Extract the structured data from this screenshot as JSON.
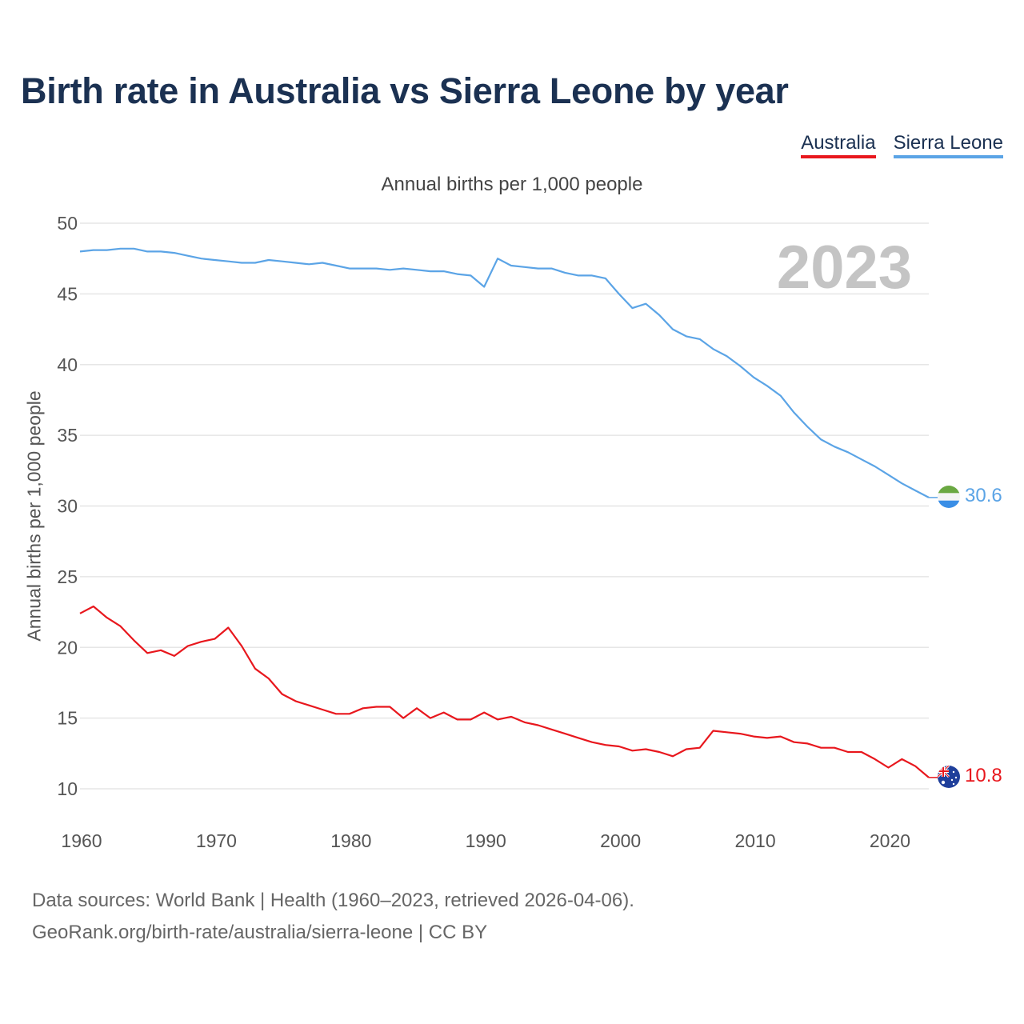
{
  "title": "Birth rate in Australia vs Sierra Leone by year",
  "subtitle": "Annual births per 1,000 people",
  "footer": {
    "line1": "Data sources: World Bank | Health (1960–2023, retrieved 2026-04-06).",
    "line2": "GeoRank.org/birth-rate/australia/sierra-leone | CC BY"
  },
  "colors": {
    "australia": "#e8171d",
    "sierra_leone": "#5ba4e6",
    "grid": "#e6e6e6",
    "tick": "#555555",
    "year_watermark": "#c4c4c4"
  },
  "chart_data": {
    "type": "line",
    "title": "Birth rate in Australia vs Sierra Leone by year",
    "subtitle": "Annual births per 1,000 people",
    "xlabel": "",
    "ylabel": "Annual births per 1,000 people",
    "xlim": [
      1960,
      2023
    ],
    "ylim": [
      10,
      50
    ],
    "yticks": [
      10,
      15,
      20,
      25,
      30,
      35,
      40,
      45,
      50
    ],
    "xticks": [
      1960,
      1970,
      1980,
      1990,
      2000,
      2010,
      2020
    ],
    "grid": true,
    "legend_position": "top-right",
    "year_label": "2023",
    "x": [
      1960,
      1961,
      1962,
      1963,
      1964,
      1965,
      1966,
      1967,
      1968,
      1969,
      1970,
      1971,
      1972,
      1973,
      1974,
      1975,
      1976,
      1977,
      1978,
      1979,
      1980,
      1981,
      1982,
      1983,
      1984,
      1985,
      1986,
      1987,
      1988,
      1989,
      1990,
      1991,
      1992,
      1993,
      1994,
      1995,
      1996,
      1997,
      1998,
      1999,
      2000,
      2001,
      2002,
      2003,
      2004,
      2005,
      2006,
      2007,
      2008,
      2009,
      2010,
      2011,
      2012,
      2013,
      2014,
      2015,
      2016,
      2017,
      2018,
      2019,
      2020,
      2021,
      2022,
      2023
    ],
    "series": [
      {
        "name": "Australia",
        "end_label": "10.8",
        "values": [
          22.4,
          22.9,
          22.1,
          21.5,
          20.5,
          19.6,
          19.8,
          19.4,
          20.1,
          20.4,
          20.6,
          21.4,
          20.1,
          18.5,
          17.8,
          16.7,
          16.2,
          15.9,
          15.6,
          15.3,
          15.3,
          15.7,
          15.8,
          15.8,
          15.0,
          15.7,
          15.0,
          15.4,
          14.9,
          14.9,
          15.4,
          14.9,
          15.1,
          14.7,
          14.5,
          14.2,
          13.9,
          13.6,
          13.3,
          13.1,
          13.0,
          12.7,
          12.8,
          12.6,
          12.3,
          12.8,
          12.9,
          14.1,
          14.0,
          13.9,
          13.7,
          13.6,
          13.7,
          13.3,
          13.2,
          12.9,
          12.9,
          12.6,
          12.6,
          12.1,
          11.5,
          12.1,
          11.6,
          10.8
        ]
      },
      {
        "name": "Sierra Leone",
        "end_label": "30.6",
        "values": [
          48.0,
          48.1,
          48.1,
          48.2,
          48.2,
          48.0,
          48.0,
          47.9,
          47.7,
          47.5,
          47.4,
          47.3,
          47.2,
          47.2,
          47.4,
          47.3,
          47.2,
          47.1,
          47.2,
          47.0,
          46.8,
          46.8,
          46.8,
          46.7,
          46.8,
          46.7,
          46.6,
          46.6,
          46.4,
          46.3,
          45.5,
          47.5,
          47.0,
          46.9,
          46.8,
          46.8,
          46.5,
          46.3,
          46.3,
          46.1,
          45.0,
          44.0,
          44.3,
          43.5,
          42.5,
          42.0,
          41.8,
          41.1,
          40.6,
          39.9,
          39.1,
          38.5,
          37.8,
          36.6,
          35.6,
          34.7,
          34.2,
          33.8,
          33.3,
          32.8,
          32.2,
          31.6,
          31.1,
          30.6
        ]
      }
    ]
  }
}
